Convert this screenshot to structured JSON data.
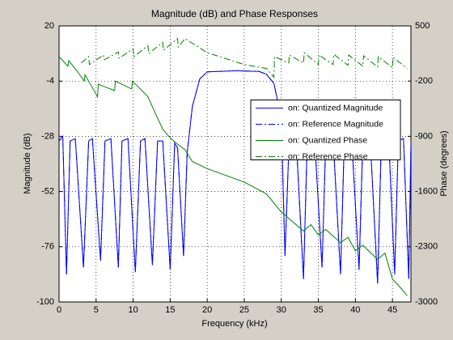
{
  "chart_data": {
    "type": "line",
    "title": "Magnitude (dB) and Phase Responses",
    "xlabel": "Frequency (kHz)",
    "ylabel": "Magnitude (dB)",
    "y2label": "Phase (degrees)",
    "xlim": [
      0,
      47.5
    ],
    "xticks": [
      0,
      5,
      10,
      15,
      20,
      25,
      30,
      35,
      40,
      45
    ],
    "ylim": [
      -100,
      20
    ],
    "yticks": [
      -100,
      -76,
      -52,
      -28,
      -4,
      20
    ],
    "y2lim": [
      -3000,
      500
    ],
    "y2ticks": [
      -3000,
      -2300,
      -1600,
      -900,
      -200,
      500
    ],
    "grid": true,
    "legend": "east",
    "series": [
      {
        "name": "on: Quantized Magnitude",
        "color": "#0000ff",
        "dash": "solid",
        "x": [
          0,
          0.5,
          1,
          1.5,
          2.2,
          3.3,
          4,
          4.5,
          5.6,
          6.2,
          7,
          8,
          8.5,
          9.3,
          10.3,
          11,
          11.6,
          12.6,
          13.3,
          14,
          15,
          15.6,
          16,
          16.8,
          17.3,
          18,
          19,
          20,
          24,
          27,
          28,
          29,
          30,
          30.5,
          31,
          32,
          33,
          33.5,
          34.5,
          35.5,
          36,
          37,
          38,
          38.5,
          39.5,
          40.5,
          41,
          42,
          43,
          43.5,
          44.5,
          45.3,
          45.8,
          46.5,
          47.2,
          47.5
        ],
        "values": [
          -30,
          -28,
          -88,
          -30,
          -29,
          -85,
          -30,
          -29,
          -82,
          -30,
          -29,
          -85,
          -30,
          -29,
          -87,
          -30,
          -29,
          -84,
          -30,
          -30,
          -86,
          -31,
          -33,
          -80,
          -35,
          -15,
          -3,
          0,
          0.5,
          0.2,
          -1,
          -5,
          -20,
          -80,
          -35,
          -29,
          -90,
          -30,
          -29,
          -85,
          -30,
          -29,
          -88,
          -30,
          -29,
          -86,
          -30,
          -29,
          -92,
          -30,
          -29,
          -88,
          -30,
          -29,
          -90,
          -31
        ]
      },
      {
        "name": "on: Reference Magnitude",
        "color": "#0000ff",
        "dash": "dashdot",
        "x": [
          0,
          0.5,
          1,
          1.5,
          2.2,
          3.3,
          4,
          4.5,
          5.6,
          6.2,
          7,
          8,
          8.5,
          9.3,
          10.3,
          11,
          11.6,
          12.6,
          13.3,
          14,
          15,
          15.6,
          16,
          16.8,
          17.3,
          18,
          19,
          20,
          24,
          27,
          28,
          29,
          30,
          30.5,
          31,
          32,
          33,
          33.5,
          34.5,
          35.5,
          36,
          37,
          38,
          38.5,
          39.5,
          40.5,
          41,
          42,
          43,
          43.5,
          44.5,
          45.3,
          45.8,
          46.5,
          47.2,
          47.5
        ],
        "values": [
          -30,
          -28,
          -88,
          -30,
          -29,
          -85,
          -30,
          -29,
          -82,
          -30,
          -29,
          -85,
          -30,
          -29,
          -87,
          -30,
          -29,
          -84,
          -30,
          -30,
          -86,
          -31,
          -33,
          -80,
          -35,
          -15,
          -3,
          0,
          0.5,
          0.2,
          -1,
          -5,
          -20,
          -80,
          -35,
          -29,
          -90,
          -30,
          -29,
          -85,
          -30,
          -29,
          -88,
          -30,
          -29,
          -86,
          -30,
          -29,
          -92,
          -30,
          -29,
          -88,
          -30,
          -29,
          -90,
          -31
        ]
      },
      {
        "name": "on: Quantized Phase",
        "color": "#008000",
        "dash": "solid",
        "axis": "y2",
        "x": [
          0,
          1.2,
          1.3,
          2.5,
          3.4,
          3.5,
          5.2,
          5.3,
          7.5,
          7.6,
          9.8,
          9.9,
          11.5,
          12,
          13,
          14,
          15,
          16,
          17,
          18,
          20,
          25,
          28,
          30,
          31,
          33,
          34,
          35,
          36,
          38,
          39,
          40,
          41,
          43,
          44,
          45,
          46,
          47
        ],
        "values": [
          110,
          -10,
          60,
          -80,
          -200,
          -120,
          -400,
          -240,
          -320,
          -200,
          -300,
          -200,
          -350,
          -400,
          -610,
          -810,
          -920,
          -1000,
          -1070,
          -1220,
          -1310,
          -1480,
          -1630,
          -1860,
          -1940,
          -2100,
          -2020,
          -2150,
          -2080,
          -2250,
          -2180,
          -2350,
          -2280,
          -2460,
          -2380,
          -2710,
          -2810,
          -2920
        ]
      },
      {
        "name": "on: Reference Phase",
        "color": "#008000",
        "dash": "dashdot",
        "axis": "y2",
        "x": [
          3,
          4,
          4.1,
          6,
          6.1,
          8,
          8.1,
          10,
          10.1,
          12,
          12.1,
          14,
          14.1,
          16,
          16.1,
          17,
          20,
          25,
          28,
          29,
          29.1,
          31,
          31.1,
          33,
          33.1,
          35,
          35.1,
          37,
          37.1,
          39,
          39.1,
          41,
          41.1,
          43,
          43.1,
          45,
          45.1,
          47
        ],
        "values": [
          30,
          110,
          10,
          130,
          70,
          170,
          90,
          210,
          110,
          250,
          150,
          290,
          190,
          340,
          230,
          340,
          160,
          10,
          -40,
          -150,
          110,
          30,
          130,
          30,
          160,
          10,
          130,
          10,
          140,
          0,
          130,
          -10,
          120,
          -20,
          110,
          -30,
          100,
          -40
        ]
      }
    ]
  }
}
